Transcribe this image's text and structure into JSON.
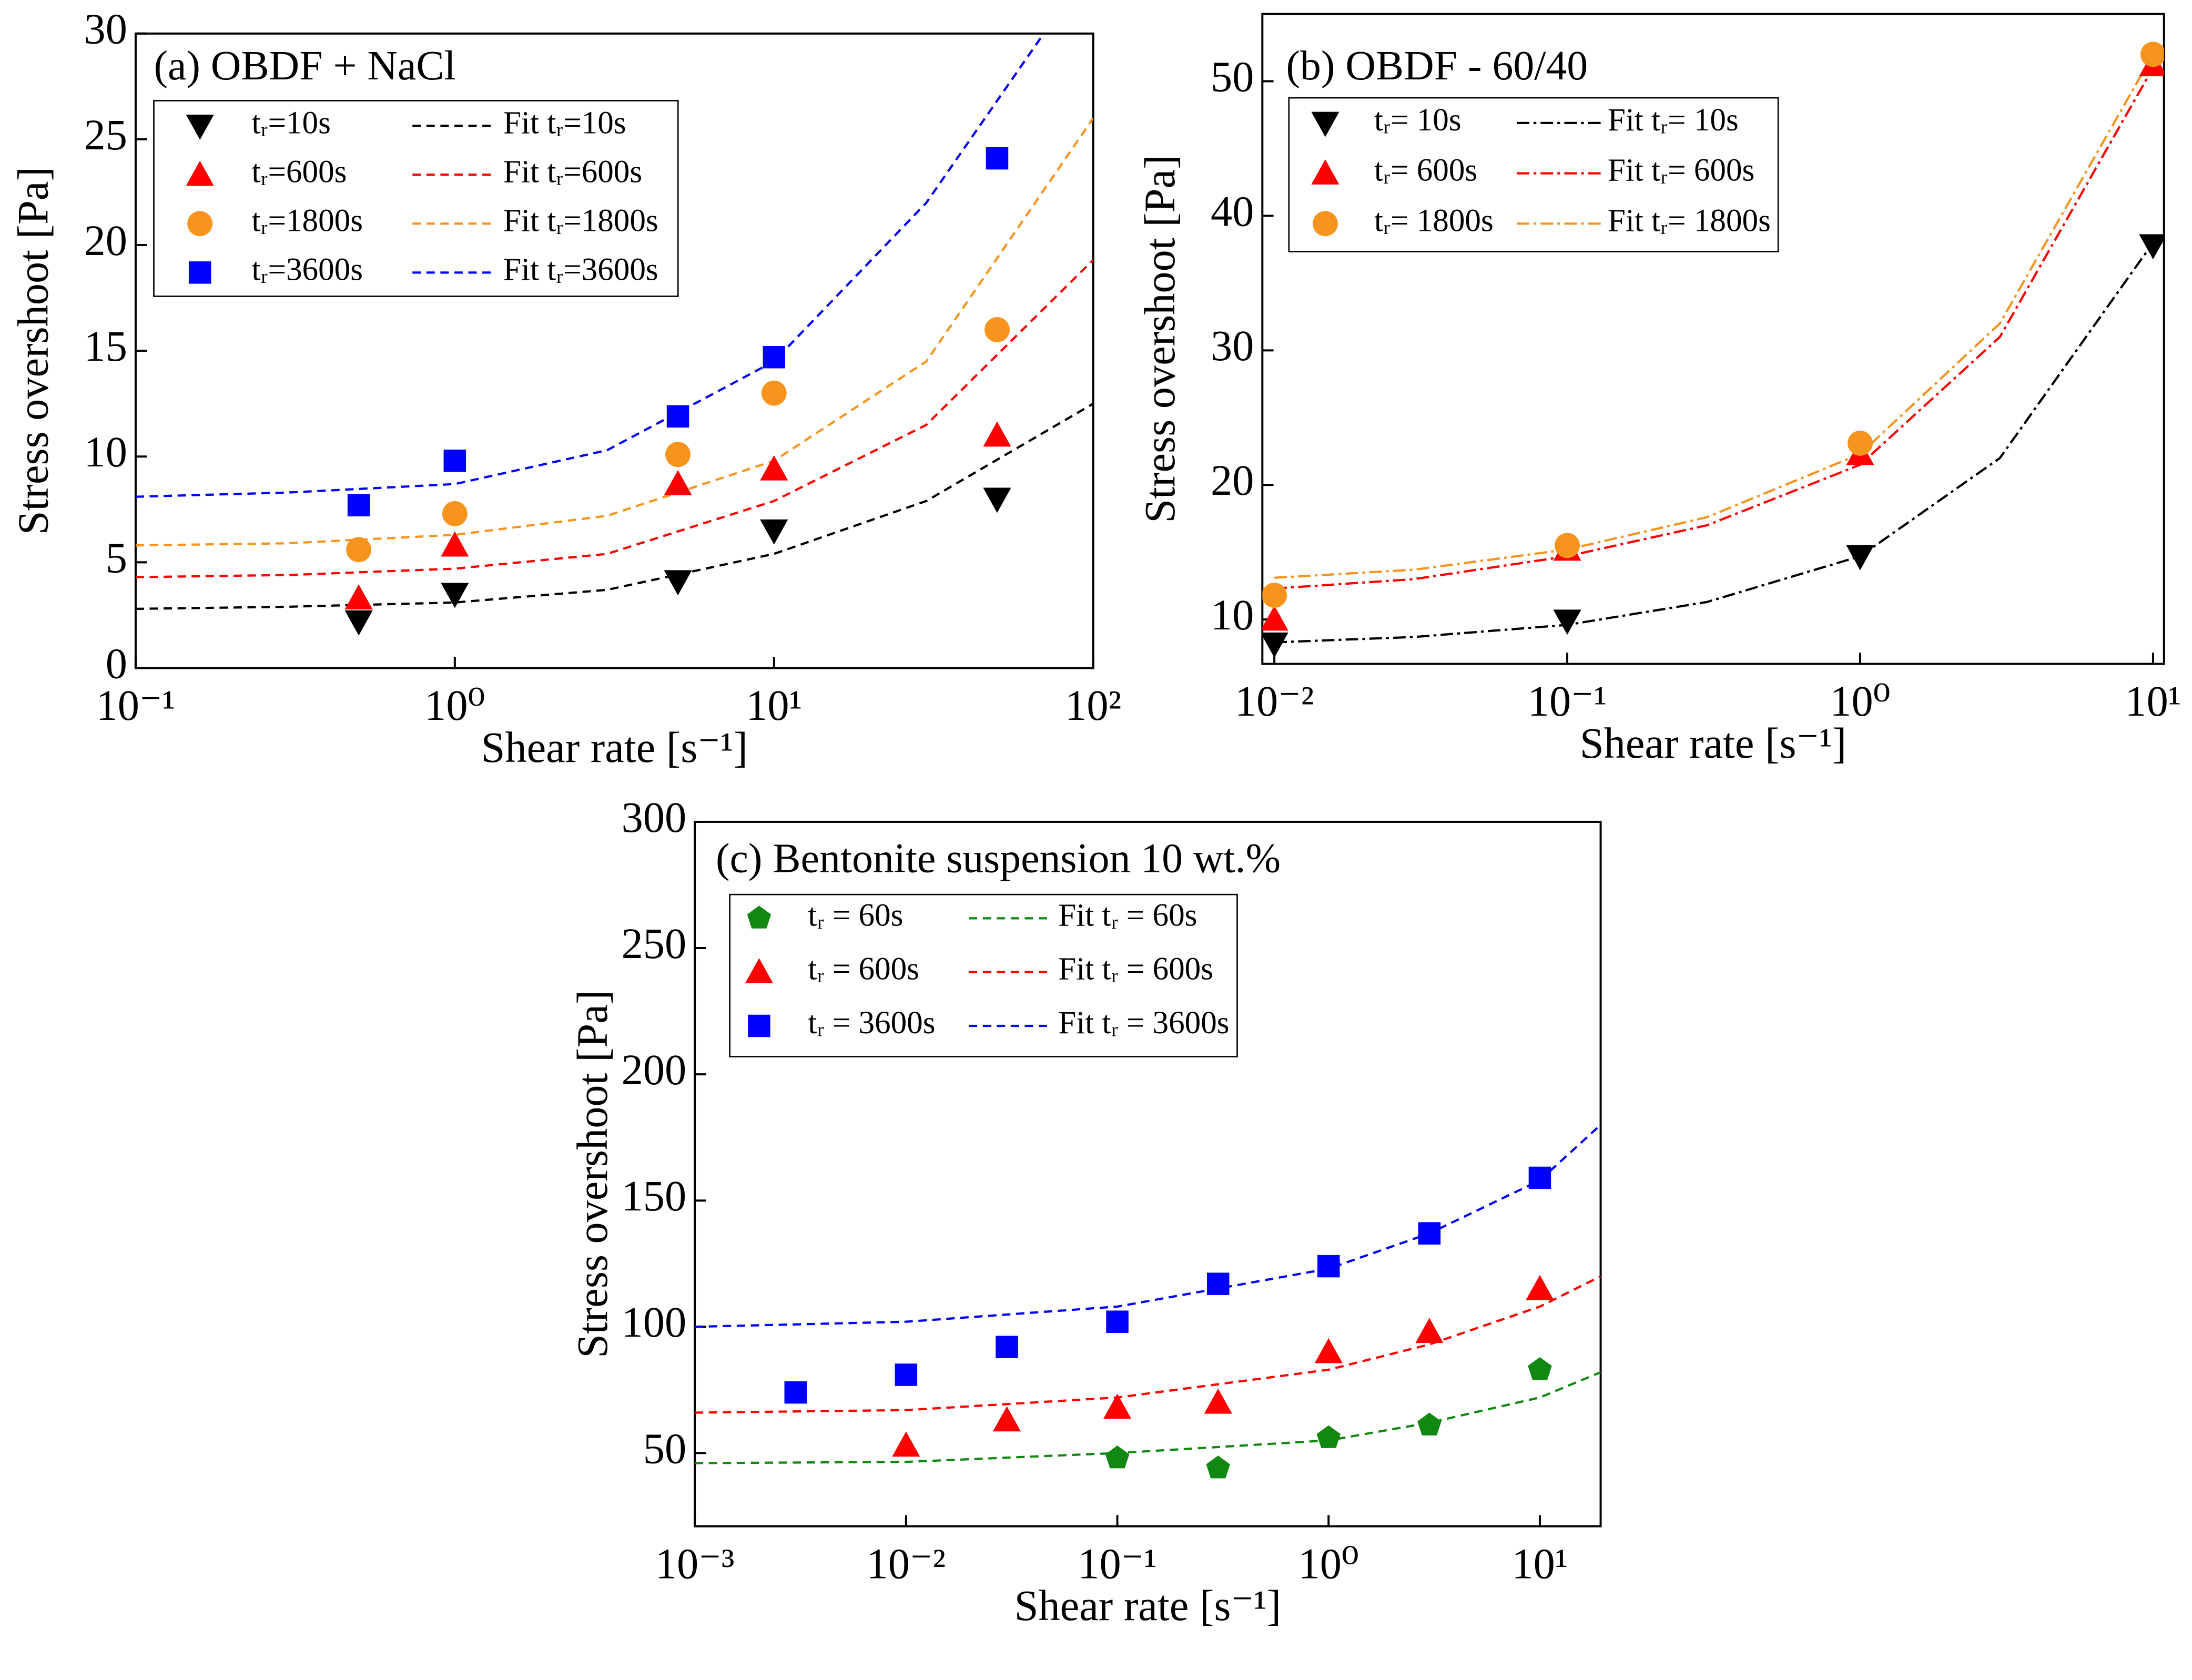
{
  "chart_data": [
    {
      "type": "scatter",
      "title": "(a) OBDF + NaCl",
      "xlabel": "Shear rate [s⁻¹]",
      "ylabel": "Stress overshoot  [Pa]",
      "xscale": "log",
      "xlim": [
        0.1,
        100
      ],
      "ylim": [
        0,
        30
      ],
      "xticks": [
        {
          "value": 0.1,
          "label": "10⁻¹"
        },
        {
          "value": 1,
          "label": "10⁰"
        },
        {
          "value": 10,
          "label": "10¹"
        },
        {
          "value": 100,
          "label": "10²"
        }
      ],
      "yticks": [
        0,
        5,
        10,
        15,
        20,
        25,
        30
      ],
      "series": [
        {
          "name": "tᵣ=10s",
          "color": "#000000",
          "marker": "triangle-down",
          "x": [
            0.5,
            1,
            5,
            10,
            50
          ],
          "values": [
            2.2,
            3.5,
            4.1,
            6.5,
            8.0
          ]
        },
        {
          "name": "tᵣ=600s",
          "color": "#ff0000",
          "marker": "triangle-up",
          "x": [
            0.5,
            1,
            5,
            10,
            50
          ],
          "values": [
            3.3,
            5.8,
            8.7,
            9.4,
            11.0
          ]
        },
        {
          "name": "tᵣ=1800s",
          "color": "#f7941d",
          "marker": "circle",
          "x": [
            0.5,
            1,
            5,
            10,
            50
          ],
          "values": [
            5.6,
            7.3,
            10.1,
            13.0,
            16.0
          ]
        },
        {
          "name": "tᵣ=3600s",
          "color": "#0000ff",
          "marker": "square",
          "x": [
            0.5,
            1,
            5,
            10,
            50
          ],
          "values": [
            7.7,
            9.8,
            11.9,
            14.7,
            24.1
          ]
        }
      ],
      "fits": [
        {
          "name": "Fit tᵣ=10s",
          "color": "#000000",
          "dash": "dashed",
          "x": [
            0.1,
            0.3,
            1,
            3,
            10,
            30,
            100
          ],
          "values": [
            2.8,
            2.9,
            3.1,
            3.7,
            5.4,
            7.9,
            12.5
          ]
        },
        {
          "name": "Fit tᵣ=600s",
          "color": "#ff0000",
          "dash": "dashed",
          "x": [
            0.1,
            0.3,
            1,
            3,
            10,
            30,
            100
          ],
          "values": [
            4.3,
            4.4,
            4.7,
            5.4,
            7.9,
            11.5,
            19.3
          ]
        },
        {
          "name": "Fit tᵣ=1800s",
          "color": "#f7941d",
          "dash": "dashed",
          "x": [
            0.1,
            0.3,
            1,
            3,
            10,
            30,
            100
          ],
          "values": [
            5.8,
            5.9,
            6.3,
            7.2,
            9.8,
            14.5,
            26
          ]
        },
        {
          "name": "Fit tᵣ=3600s",
          "color": "#0000ff",
          "dash": "dashed",
          "x": [
            0.1,
            0.3,
            1,
            3,
            10,
            30,
            70
          ],
          "values": [
            8.1,
            8.3,
            8.7,
            10.3,
            14.5,
            22,
            30
          ]
        }
      ]
    },
    {
      "type": "scatter",
      "title": "(b) OBDF - 60/40",
      "xlabel": "Shear rate [s⁻¹]",
      "ylabel": "Stress overshoot [Pa]",
      "xscale": "log",
      "xlim": [
        0.0091,
        10.9
      ],
      "ylim": [
        6.7,
        55
      ],
      "xticks": [
        {
          "value": 0.01,
          "label": "10⁻²"
        },
        {
          "value": 0.1,
          "label": "10⁻¹"
        },
        {
          "value": 1,
          "label": "10⁰"
        },
        {
          "value": 10,
          "label": "10¹"
        }
      ],
      "yticks": [
        10,
        20,
        30,
        40,
        50
      ],
      "series": [
        {
          "name": "tᵣ= 10s",
          "color": "#000000",
          "marker": "triangle-down",
          "x": [
            0.01,
            0.1,
            1,
            10
          ],
          "values": [
            8.2,
            9.9,
            14.7,
            37.8
          ]
        },
        {
          "name": "tᵣ= 600s",
          "color": "#ff0000",
          "marker": "triangle-up",
          "x": [
            0.01,
            0.1,
            1,
            10
          ],
          "values": [
            10.0,
            15.2,
            22.3,
            51.2
          ]
        },
        {
          "name": "tᵣ= 1800s",
          "color": "#f7941d",
          "marker": "circle",
          "x": [
            0.01,
            0.1,
            1,
            10
          ],
          "values": [
            11.8,
            15.5,
            23.1,
            52.0
          ]
        }
      ],
      "fits": [
        {
          "name": "Fit tᵣ= 10s",
          "color": "#000000",
          "dash": "dashdot",
          "x": [
            0.01,
            0.03,
            0.1,
            0.3,
            1,
            3,
            10
          ],
          "values": [
            8.3,
            8.7,
            9.6,
            11.3,
            14.7,
            22,
            38
          ]
        },
        {
          "name": "Fit tᵣ= 600s",
          "color": "#ff0000",
          "dash": "dashdot",
          "x": [
            0.01,
            0.03,
            0.1,
            0.3,
            1,
            3,
            10
          ],
          "values": [
            12.3,
            13.0,
            14.7,
            17.0,
            21.5,
            31,
            51
          ]
        },
        {
          "name": "Fit tᵣ= 1800s",
          "color": "#f7941d",
          "dash": "dashdot",
          "x": [
            0.01,
            0.03,
            0.1,
            0.3,
            1,
            3,
            10
          ],
          "values": [
            13.1,
            13.7,
            15.2,
            17.6,
            22.3,
            32,
            52
          ]
        }
      ]
    },
    {
      "type": "scatter",
      "title": "(c) Bentonite suspension 10 wt.%",
      "xlabel": "Shear rate [s⁻¹]",
      "ylabel": "Stress overshoot  [Pa]",
      "xscale": "log",
      "xlim": [
        0.001,
        19.4
      ],
      "ylim": [
        21,
        300
      ],
      "xticks": [
        {
          "value": 0.001,
          "label": "10⁻³"
        },
        {
          "value": 0.01,
          "label": "10⁻²"
        },
        {
          "value": 0.1,
          "label": "10⁻¹"
        },
        {
          "value": 1,
          "label": "10⁰"
        },
        {
          "value": 10,
          "label": "10¹"
        }
      ],
      "yticks": [
        50,
        100,
        150,
        200,
        250,
        300
      ],
      "series": [
        {
          "name": "tᵣ = 60s",
          "color": "#118811",
          "marker": "pentagon",
          "x": [
            0.1,
            0.3,
            1,
            3,
            10
          ],
          "values": [
            48,
            44,
            56,
            61,
            83
          ]
        },
        {
          "name": "tᵣ = 600s",
          "color": "#ff0000",
          "marker": "triangle-up",
          "x": [
            0.01,
            0.03,
            0.1,
            0.3,
            1,
            3,
            10
          ],
          "values": [
            53,
            63,
            68,
            70,
            90,
            98,
            115
          ]
        },
        {
          "name": "tᵣ = 3600s",
          "color": "#0000ff",
          "marker": "square",
          "x": [
            0.003,
            0.01,
            0.03,
            0.1,
            0.3,
            1,
            3,
            10
          ],
          "values": [
            74,
            81,
            92,
            102,
            117,
            124,
            137,
            159
          ]
        }
      ],
      "fits": [
        {
          "name": "Fit tᵣ = 60s",
          "color": "#118811",
          "dash": "dashed",
          "x": [
            0.001,
            0.01,
            0.1,
            1,
            3,
            10,
            19.4
          ],
          "values": [
            46,
            46.5,
            50,
            55,
            62,
            72,
            82
          ]
        },
        {
          "name": "Fit tᵣ = 600s",
          "color": "#ff0000",
          "dash": "dashed",
          "x": [
            0.001,
            0.01,
            0.1,
            1,
            3,
            10,
            19.4
          ],
          "values": [
            66,
            67,
            72,
            83,
            93,
            108,
            120
          ]
        },
        {
          "name": "Fit tᵣ = 3600s",
          "color": "#0000ff",
          "dash": "dashed",
          "x": [
            0.001,
            0.01,
            0.1,
            1,
            3,
            10,
            19.4
          ],
          "values": [
            100,
            102,
            108,
            123,
            137,
            158,
            180
          ]
        }
      ]
    }
  ]
}
